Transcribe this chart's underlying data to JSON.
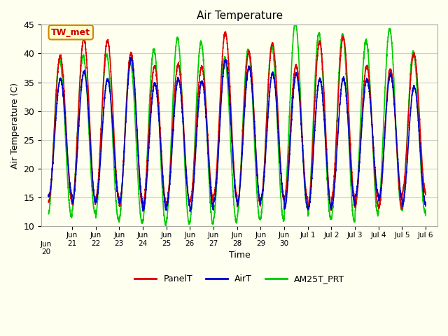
{
  "title": "Air Temperature",
  "ylabel": "Air Temperature (C)",
  "xlabel": "Time",
  "ylim": [
    10,
    45
  ],
  "background_color": "#fffff0",
  "plot_bg_color": "#fffff0",
  "grid_color": "#cccccc",
  "annotation_text": "TW_met",
  "annotation_bg": "#ffffcc",
  "annotation_border": "#cc8800",
  "annotation_text_color": "#cc0000",
  "series": {
    "PanelT": {
      "color": "#dd0000",
      "linewidth": 1.2
    },
    "AirT": {
      "color": "#0000cc",
      "linewidth": 1.2
    },
    "AM25T_PRT": {
      "color": "#00cc00",
      "linewidth": 1.2
    }
  },
  "xtick_labels": [
    "Jun\n21",
    "Jun\n22",
    "Jun\n23",
    "Jun\n24",
    "Jun\n25",
    "Jun\n26",
    "Jun\n27",
    "Jun\n28",
    "Jun\n29",
    "Jun\n30",
    "Jul 1",
    "Jul 2",
    "Jul 3",
    "Jul 4",
    "Jul 5",
    "Jul 6"
  ],
  "xtick_positions": [
    1,
    2,
    3,
    4,
    5,
    6,
    7,
    8,
    9,
    10,
    11,
    12,
    13,
    14,
    15,
    16
  ],
  "xlim": [
    -0.3,
    16.5
  ],
  "legend_labels": [
    "PanelT",
    "AirT",
    "AM25T_PRT"
  ],
  "legend_colors": [
    "#dd0000",
    "#0000cc",
    "#00cc00"
  ],
  "days": 16,
  "pts_per_day": 288,
  "seed": 42,
  "panel_phase": 0.0,
  "air_phase": -0.05,
  "am25_phase": 0.18,
  "panel_min_base": 14.5,
  "panel_range": 26.0,
  "air_min_base": 14.0,
  "air_range": 22.0,
  "am25_min_base": 12.0,
  "am25_range": 30.0
}
